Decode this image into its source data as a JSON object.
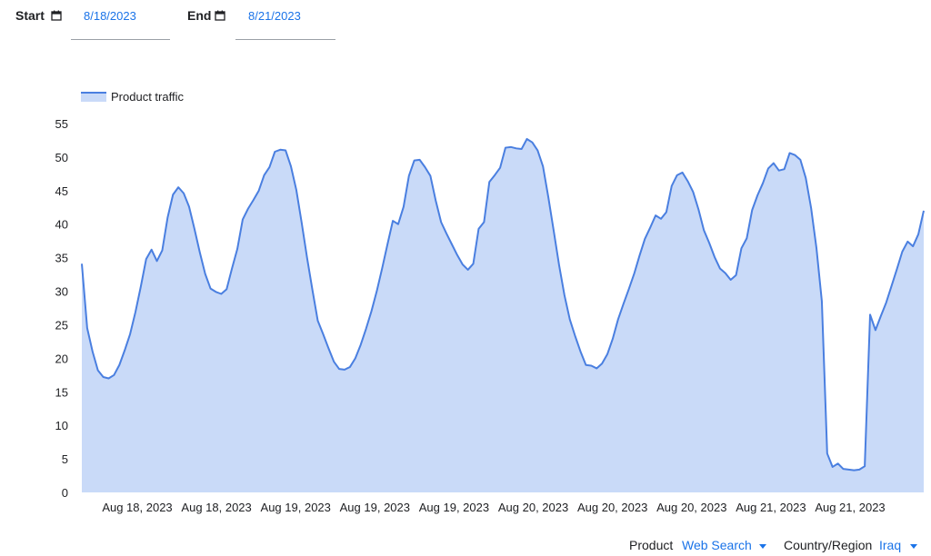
{
  "date_range": {
    "start_label": "Start",
    "start_value": "8/18/2023",
    "end_label": "End",
    "end_value": "8/21/2023"
  },
  "filters": {
    "product_label": "Product",
    "product_value": "Web Search",
    "region_label": "Country/Region",
    "region_value": "Iraq"
  },
  "colors": {
    "line": "#4a7fe0",
    "fill": "#c9daf8",
    "axis_text": "#202124",
    "accent": "#1a73e8"
  },
  "chart_data": {
    "type": "area",
    "title": "",
    "xlabel": "",
    "ylabel": "",
    "ylim": [
      0,
      55
    ],
    "yticks": [
      0,
      5,
      10,
      15,
      20,
      25,
      30,
      35,
      40,
      45,
      50,
      55
    ],
    "grid": false,
    "legend_position": "top-left",
    "xtick_labels": [
      "Aug 18, 2023",
      "Aug 18, 2023",
      "Aug 19, 2023",
      "Aug 19, 2023",
      "Aug 19, 2023",
      "Aug 20, 2023",
      "Aug 20, 2023",
      "Aug 20, 2023",
      "Aug 21, 2023",
      "Aug 21, 2023"
    ],
    "series": [
      {
        "name": "Product traffic",
        "values": [
          34.1,
          24.5,
          21.0,
          18.2,
          17.2,
          17.0,
          17.5,
          19.0,
          21.2,
          23.6,
          26.9,
          30.7,
          34.8,
          36.2,
          34.5,
          36.1,
          41.0,
          44.4,
          45.5,
          44.6,
          42.6,
          39.3,
          35.8,
          32.6,
          30.4,
          29.9,
          29.6,
          30.3,
          33.4,
          36.3,
          40.7,
          42.3,
          43.6,
          45.0,
          47.3,
          48.5,
          50.8,
          51.1,
          51.0,
          48.6,
          45.1,
          40.2,
          35.0,
          30.2,
          25.6,
          23.6,
          21.5,
          19.5,
          18.4,
          18.3,
          18.7,
          20.0,
          22.0,
          24.4,
          27.0,
          30.0,
          33.4,
          37.0,
          40.5,
          40.0,
          42.6,
          47.2,
          49.5,
          49.6,
          48.5,
          47.2,
          43.5,
          40.3,
          38.6,
          37.0,
          35.4,
          34.0,
          33.2,
          34.1,
          39.3,
          40.3,
          46.3,
          47.3,
          48.4,
          51.4,
          51.5,
          51.3,
          51.2,
          52.7,
          52.2,
          51.0,
          48.6,
          44.0,
          39.0,
          33.9,
          29.4,
          25.8,
          23.3,
          21.0,
          19.0,
          18.9,
          18.5,
          19.2,
          20.6,
          22.9,
          25.8,
          28.1,
          30.3,
          32.6,
          35.3,
          37.8,
          39.5,
          41.3,
          40.8,
          41.8,
          45.7,
          47.3,
          47.7,
          46.4,
          44.8,
          42.2,
          39.1,
          37.2,
          35.1,
          33.4,
          32.7,
          31.7,
          32.4,
          36.4,
          37.9,
          42.1,
          44.3,
          46.1,
          48.3,
          49.1,
          48.0,
          48.2,
          50.6,
          50.3,
          49.6,
          46.9,
          42.4,
          36.4,
          28.5,
          5.8,
          3.8,
          4.3,
          3.5,
          3.4,
          3.3,
          3.4,
          3.9,
          26.5,
          24.2,
          26.3,
          28.3,
          30.8,
          33.3,
          35.9,
          37.4,
          36.7,
          38.5,
          42.0
        ]
      }
    ]
  }
}
